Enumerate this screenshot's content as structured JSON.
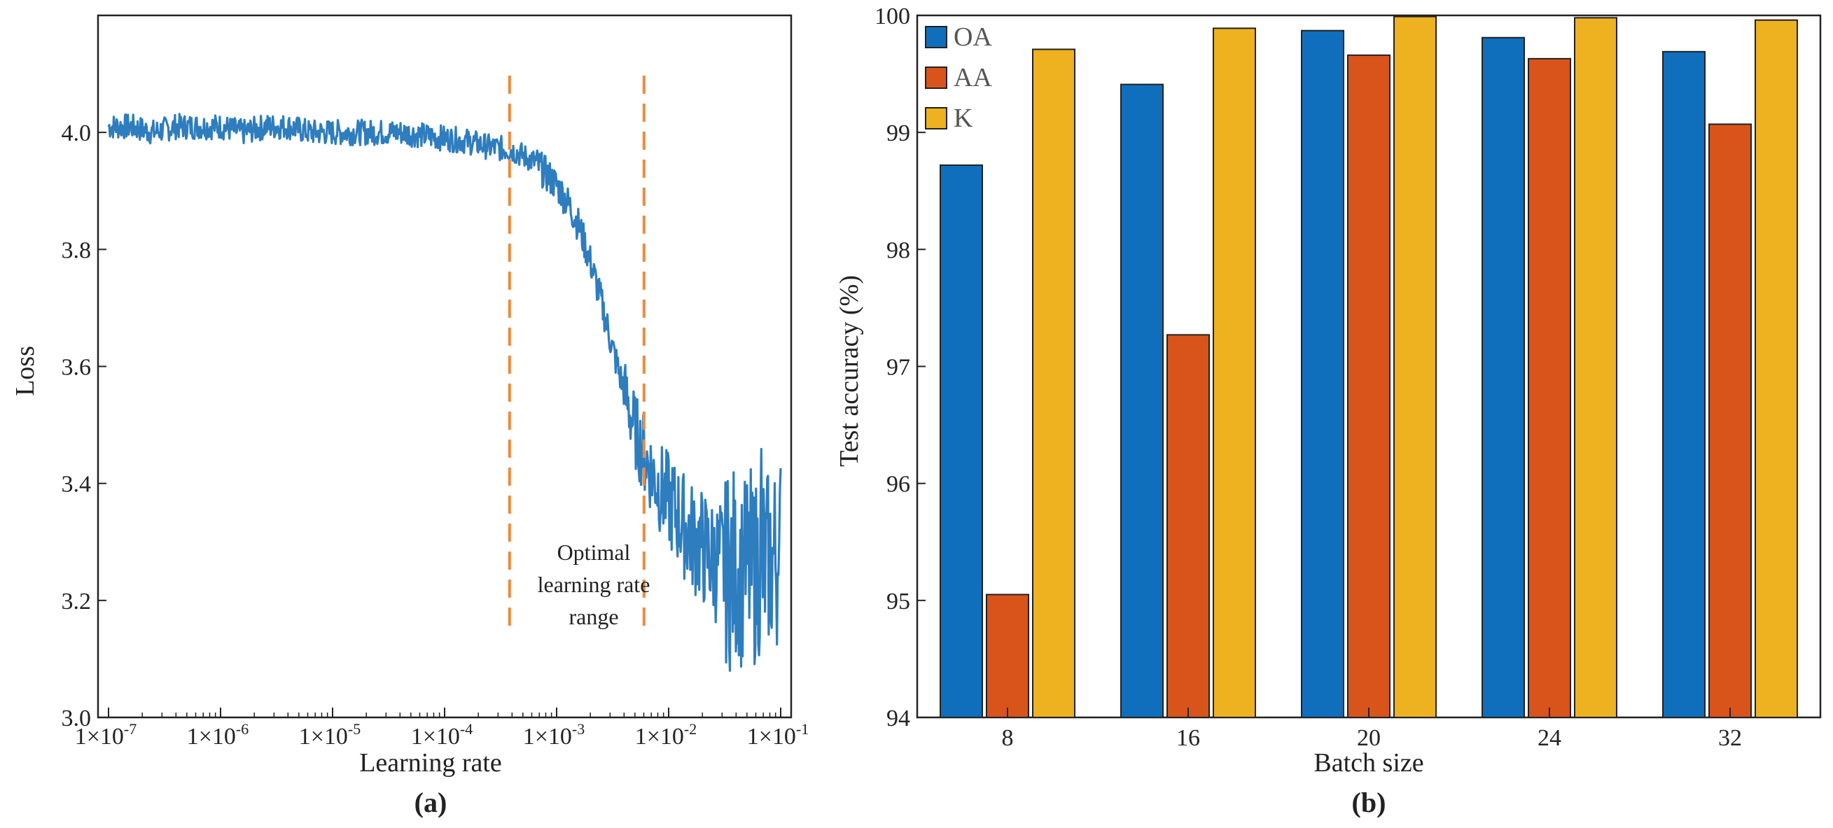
{
  "chart_data": [
    {
      "type": "line",
      "panel_label": "(a)",
      "xlabel": "Learning rate",
      "ylabel": "Loss",
      "xscale": "log",
      "xlim_exp": [
        -7,
        -1
      ],
      "ylim": [
        3.0,
        4.2
      ],
      "x_ticks": [
        "1×10",
        "1×10",
        "1×10",
        "1×10",
        "1×10",
        "1×10",
        "1×10"
      ],
      "x_tick_exponents": [
        "-7",
        "-6",
        "-5",
        "-4",
        "-3",
        "-2",
        "-1"
      ],
      "x_tick_values_exp": [
        -7,
        -6,
        -5,
        -4,
        -3,
        -2,
        -1
      ],
      "y_ticks": [
        "3.0",
        "3.2",
        "3.4",
        "3.6",
        "3.8",
        "4.0"
      ],
      "y_tick_values": [
        3.0,
        3.2,
        3.4,
        3.6,
        3.8,
        4.0
      ],
      "series_color": "#2e7dbf",
      "curve_points": [
        [
          -7.0,
          4.01
        ],
        [
          -6.8,
          4.01
        ],
        [
          -6.6,
          4.0
        ],
        [
          -6.4,
          4.01
        ],
        [
          -6.2,
          4.01
        ],
        [
          -6.0,
          4.01
        ],
        [
          -5.8,
          4.0
        ],
        [
          -5.6,
          4.01
        ],
        [
          -5.4,
          4.01
        ],
        [
          -5.2,
          4.0
        ],
        [
          -5.0,
          4.0
        ],
        [
          -4.8,
          4.0
        ],
        [
          -4.6,
          4.0
        ],
        [
          -4.4,
          4.0
        ],
        [
          -4.2,
          3.995
        ],
        [
          -4.0,
          3.99
        ],
        [
          -3.8,
          3.985
        ],
        [
          -3.6,
          3.975
        ],
        [
          -3.4,
          3.97
        ],
        [
          -3.3,
          3.96
        ],
        [
          -3.2,
          3.95
        ],
        [
          -3.1,
          3.93
        ],
        [
          -3.0,
          3.91
        ],
        [
          -2.9,
          3.88
        ],
        [
          -2.8,
          3.84
        ],
        [
          -2.7,
          3.78
        ],
        [
          -2.6,
          3.71
        ],
        [
          -2.5,
          3.63
        ],
        [
          -2.4,
          3.56
        ],
        [
          -2.3,
          3.49
        ],
        [
          -2.2,
          3.44
        ],
        [
          -2.1,
          3.4
        ],
        [
          -2.0,
          3.37
        ],
        [
          -1.9,
          3.34
        ],
        [
          -1.8,
          3.31
        ],
        [
          -1.7,
          3.29
        ],
        [
          -1.6,
          3.27
        ],
        [
          -1.5,
          3.26
        ],
        [
          -1.4,
          3.25
        ],
        [
          -1.3,
          3.25
        ],
        [
          -1.2,
          3.25
        ],
        [
          -1.1,
          3.26
        ],
        [
          -1.0,
          3.28
        ]
      ],
      "range_lines_exp": [
        -3.42,
        -2.22
      ],
      "range_line_color": "#f08a3c",
      "annotation": [
        "Optimal",
        "learning rate",
        "range"
      ]
    },
    {
      "type": "bar",
      "panel_label": "(b)",
      "xlabel": "Batch size",
      "ylabel": "Test accuracy (%)",
      "ylim": [
        94,
        100
      ],
      "y_ticks": [
        "94",
        "95",
        "96",
        "97",
        "98",
        "99",
        "100"
      ],
      "y_tick_values": [
        94,
        95,
        96,
        97,
        98,
        99,
        100
      ],
      "categories": [
        "8",
        "16",
        "20",
        "24",
        "32"
      ],
      "series": [
        {
          "name": "OA",
          "color": "#0f6fbd",
          "values": [
            98.72,
            99.41,
            99.87,
            99.81,
            99.69
          ]
        },
        {
          "name": "AA",
          "color": "#d9541a",
          "values": [
            95.05,
            97.27,
            99.66,
            99.63,
            99.07
          ]
        },
        {
          "name": "K",
          "color": "#eeb120",
          "values": [
            99.71,
            99.89,
            99.99,
            99.98,
            99.96
          ]
        }
      ],
      "legend_position": "top-left"
    }
  ]
}
